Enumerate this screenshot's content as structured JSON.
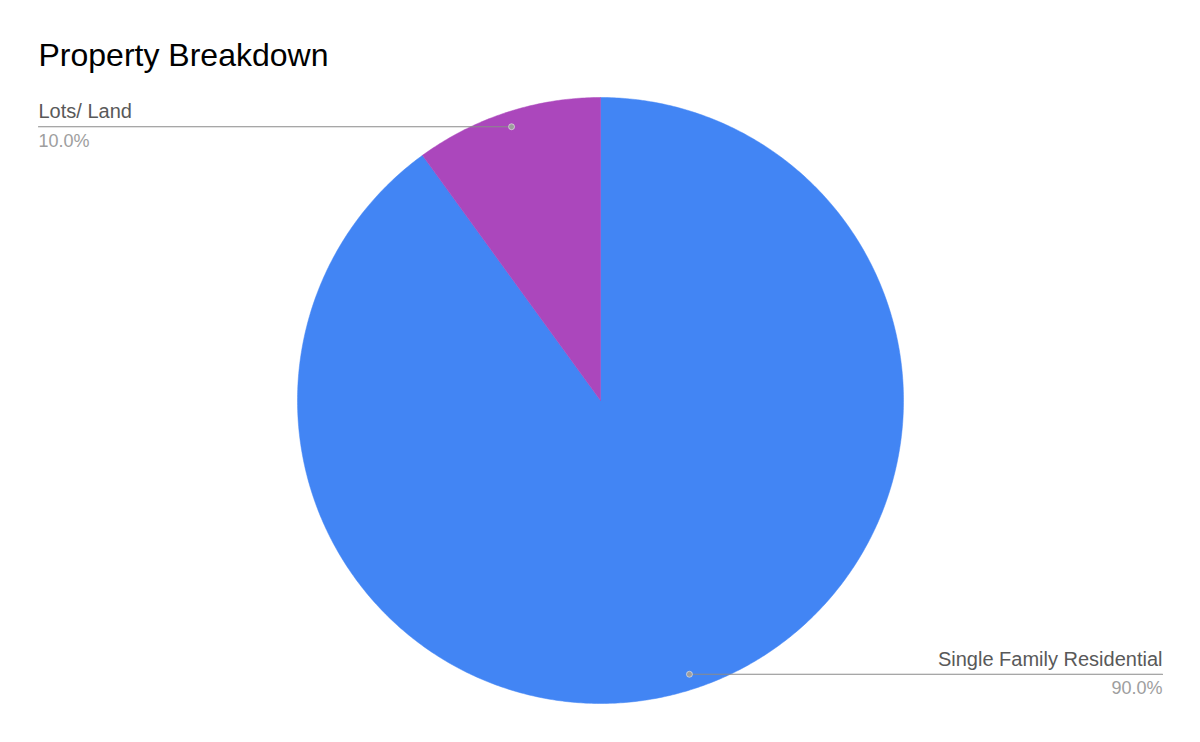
{
  "chart_data": {
    "type": "pie",
    "title": "Property Breakdown",
    "categories": [
      "Single Family Residential",
      "Lots/ Land"
    ],
    "values": [
      90,
      10
    ],
    "value_labels": [
      "90.0%",
      "10.0%"
    ],
    "colors": [
      "#4285f4",
      "#ab47bc"
    ],
    "data_labels": true
  }
}
